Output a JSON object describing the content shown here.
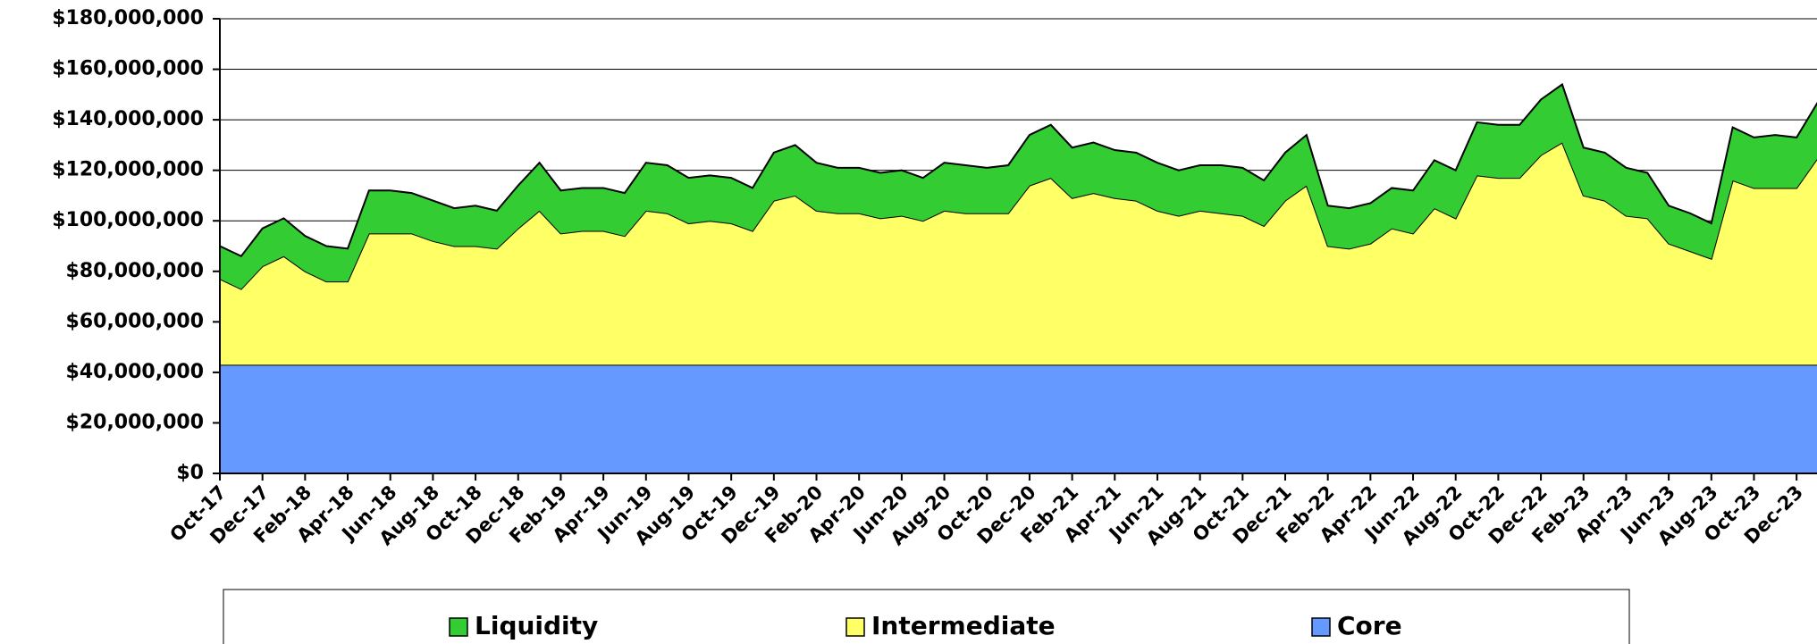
{
  "chart_data": {
    "type": "stacked-area",
    "categories": [
      "Oct-17",
      null,
      "Dec-17",
      null,
      "Feb-18",
      null,
      "Apr-18",
      null,
      "Jun-18",
      null,
      "Aug-18",
      null,
      "Oct-18",
      null,
      "Dec-18",
      null,
      "Feb-19",
      null,
      "Apr-19",
      null,
      "Jun-19",
      null,
      "Aug-19",
      null,
      "Oct-19",
      null,
      "Dec-19",
      null,
      "Feb-20",
      null,
      "Apr-20",
      null,
      "Jun-20",
      null,
      "Aug-20",
      null,
      "Oct-20",
      null,
      "Dec-20",
      null,
      "Feb-21",
      null,
      "Apr-21",
      null,
      "Jun-21",
      null,
      "Aug-21",
      null,
      "Oct-21",
      null,
      "Dec-21",
      null,
      "Feb-22",
      null,
      "Apr-22",
      null,
      "Jun-22",
      null,
      "Aug-22",
      null,
      "Oct-22",
      null,
      "Dec-22",
      null,
      "Feb-23",
      null,
      "Apr-23",
      null,
      "Jun-23",
      null,
      "Aug-23",
      null,
      "Oct-23",
      null,
      "Dec-23",
      null
    ],
    "series": [
      {
        "name": "Liquidity",
        "color": "#33cc33",
        "values": [
          13000000,
          13000000,
          15000000,
          15000000,
          14000000,
          14000000,
          13000000,
          17000000,
          17000000,
          16000000,
          16000000,
          15000000,
          16000000,
          15000000,
          17000000,
          19000000,
          17000000,
          17000000,
          17000000,
          17000000,
          19000000,
          19000000,
          18000000,
          18000000,
          18000000,
          17000000,
          19000000,
          20000000,
          19000000,
          18000000,
          18000000,
          18000000,
          18000000,
          17000000,
          19000000,
          19000000,
          18000000,
          19000000,
          20000000,
          21000000,
          20000000,
          20000000,
          19000000,
          19000000,
          19000000,
          18000000,
          18000000,
          19000000,
          19000000,
          18000000,
          19000000,
          20000000,
          16000000,
          16000000,
          16000000,
          16000000,
          17000000,
          19000000,
          19000000,
          21000000,
          21000000,
          21000000,
          22000000,
          23000000,
          19000000,
          19000000,
          19000000,
          18000000,
          15000000,
          15000000,
          14000000,
          21000000,
          20000000,
          21000000,
          20000000,
          22000000
        ]
      },
      {
        "name": "Intermediate",
        "color": "#ffff66",
        "values": [
          34000000,
          30000000,
          39000000,
          43000000,
          37000000,
          33000000,
          33000000,
          52000000,
          52000000,
          52000000,
          49000000,
          47000000,
          47000000,
          46000000,
          54000000,
          61000000,
          52000000,
          53000000,
          53000000,
          51000000,
          61000000,
          60000000,
          56000000,
          57000000,
          56000000,
          53000000,
          65000000,
          67000000,
          61000000,
          60000000,
          60000000,
          58000000,
          59000000,
          57000000,
          61000000,
          60000000,
          60000000,
          60000000,
          71000000,
          74000000,
          66000000,
          68000000,
          66000000,
          65000000,
          61000000,
          59000000,
          61000000,
          60000000,
          59000000,
          55000000,
          65000000,
          71000000,
          47000000,
          46000000,
          48000000,
          54000000,
          52000000,
          62000000,
          58000000,
          75000000,
          74000000,
          74000000,
          83000000,
          88000000,
          67000000,
          65000000,
          59000000,
          58000000,
          48000000,
          45000000,
          42000000,
          73000000,
          70000000,
          70000000,
          70000000,
          82000000
        ]
      },
      {
        "name": "Core",
        "color": "#6699ff",
        "values": [
          43000000,
          43000000,
          43000000,
          43000000,
          43000000,
          43000000,
          43000000,
          43000000,
          43000000,
          43000000,
          43000000,
          43000000,
          43000000,
          43000000,
          43000000,
          43000000,
          43000000,
          43000000,
          43000000,
          43000000,
          43000000,
          43000000,
          43000000,
          43000000,
          43000000,
          43000000,
          43000000,
          43000000,
          43000000,
          43000000,
          43000000,
          43000000,
          43000000,
          43000000,
          43000000,
          43000000,
          43000000,
          43000000,
          43000000,
          43000000,
          43000000,
          43000000,
          43000000,
          43000000,
          43000000,
          43000000,
          43000000,
          43000000,
          43000000,
          43000000,
          43000000,
          43000000,
          43000000,
          43000000,
          43000000,
          43000000,
          43000000,
          43000000,
          43000000,
          43000000,
          43000000,
          43000000,
          43000000,
          43000000,
          43000000,
          43000000,
          43000000,
          43000000,
          43000000,
          43000000,
          43000000,
          43000000,
          43000000,
          43000000,
          43000000,
          43000000
        ]
      }
    ],
    "ylim": [
      0,
      180000000
    ],
    "yticks": [
      {
        "value": 0,
        "label": "$0"
      },
      {
        "value": 20000000,
        "label": "$20,000,000"
      },
      {
        "value": 40000000,
        "label": "$40,000,000"
      },
      {
        "value": 60000000,
        "label": "$60,000,000"
      },
      {
        "value": 80000000,
        "label": "$80,000,000"
      },
      {
        "value": 100000000,
        "label": "$100,000,000"
      },
      {
        "value": 120000000,
        "label": "$120,000,000"
      },
      {
        "value": 140000000,
        "label": "$140,000,000"
      },
      {
        "value": 160000000,
        "label": "$160,000,000"
      },
      {
        "value": 180000000,
        "label": "$180,000,000"
      }
    ],
    "grid": true,
    "legend": "bottom"
  }
}
